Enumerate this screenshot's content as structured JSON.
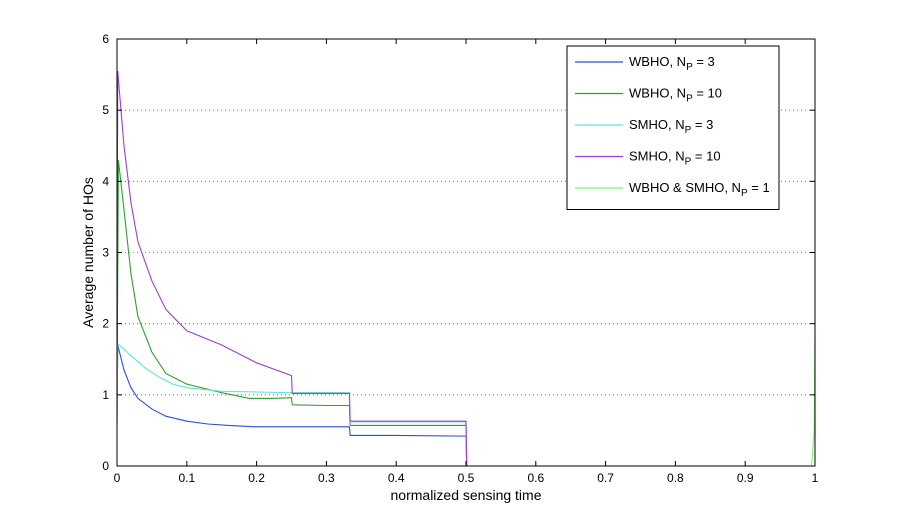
{
  "chart_data": {
    "type": "line",
    "title": "",
    "xlabel": "normalized sensing time",
    "ylabel": "Average number of HOs",
    "xlim": [
      0,
      1
    ],
    "ylim": [
      0,
      6
    ],
    "x_ticks": [
      "0",
      "0.1",
      "0.2",
      "0.3",
      "0.4",
      "0.5",
      "0.6",
      "0.7",
      "0.8",
      "0.9",
      "1"
    ],
    "y_ticks": [
      "0",
      "1",
      "2",
      "3",
      "4",
      "5",
      "6"
    ],
    "grid": "dotted-horizontal",
    "legend_position": "top-right",
    "series": [
      {
        "name": "WBHO, N_P = 3",
        "legend": {
          "main": "WBHO, N",
          "sub": "P",
          "suffix": " = 3"
        },
        "color": "#2b4fd6",
        "points": [
          [
            0,
            0.6
          ],
          [
            0.001,
            1.7
          ],
          [
            0.01,
            1.35
          ],
          [
            0.02,
            1.1
          ],
          [
            0.03,
            0.95
          ],
          [
            0.05,
            0.8
          ],
          [
            0.07,
            0.7
          ],
          [
            0.1,
            0.63
          ],
          [
            0.13,
            0.59
          ],
          [
            0.16,
            0.57
          ],
          [
            0.2,
            0.55
          ],
          [
            0.25,
            0.55
          ],
          [
            0.333,
            0.55
          ],
          [
            0.334,
            0.43
          ],
          [
            0.4,
            0.43
          ],
          [
            0.5,
            0.42
          ],
          [
            0.501,
            0.0
          ],
          [
            0.999,
            0.0
          ],
          [
            1.0,
            0.0
          ]
        ]
      },
      {
        "name": "WBHO, N_P = 10",
        "legend": {
          "main": "WBHO, N",
          "sub": "P",
          "suffix": " = 10"
        },
        "color": "#2ea02e",
        "points": [
          [
            0,
            1.0
          ],
          [
            0.002,
            4.3
          ],
          [
            0.01,
            3.6
          ],
          [
            0.02,
            2.7
          ],
          [
            0.03,
            2.1
          ],
          [
            0.05,
            1.6
          ],
          [
            0.07,
            1.3
          ],
          [
            0.1,
            1.15
          ],
          [
            0.15,
            1.03
          ],
          [
            0.19,
            0.95
          ],
          [
            0.22,
            0.95
          ],
          [
            0.25,
            0.96
          ],
          [
            0.251,
            0.86
          ],
          [
            0.3,
            0.85
          ],
          [
            0.333,
            0.85
          ],
          [
            0.334,
            0.57
          ],
          [
            0.4,
            0.57
          ],
          [
            0.5,
            0.57
          ],
          [
            0.501,
            0.0
          ],
          [
            0.999,
            0.0
          ],
          [
            1.0,
            0.0
          ]
        ]
      },
      {
        "name": "SMHO, N_P = 3",
        "legend": {
          "main": "SMHO, N",
          "sub": "P",
          "suffix": " = 3"
        },
        "color": "#5ee6d2",
        "points": [
          [
            0,
            0.6
          ],
          [
            0.001,
            1.72
          ],
          [
            0.02,
            1.55
          ],
          [
            0.04,
            1.38
          ],
          [
            0.06,
            1.25
          ],
          [
            0.08,
            1.15
          ],
          [
            0.1,
            1.1
          ],
          [
            0.15,
            1.05
          ],
          [
            0.2,
            1.04
          ],
          [
            0.25,
            1.03
          ],
          [
            0.333,
            1.03
          ],
          [
            0.334,
            0.62
          ],
          [
            0.4,
            0.62
          ],
          [
            0.5,
            0.62
          ],
          [
            0.501,
            0.0
          ],
          [
            0.999,
            0.0
          ],
          [
            1.0,
            0.0
          ]
        ]
      },
      {
        "name": "SMHO, N_P = 10",
        "legend": {
          "main": "SMHO, N",
          "sub": "P",
          "suffix": " = 10"
        },
        "color": "#9b3fcf",
        "points": [
          [
            0,
            1.3
          ],
          [
            0.001,
            5.55
          ],
          [
            0.01,
            4.5
          ],
          [
            0.02,
            3.7
          ],
          [
            0.03,
            3.15
          ],
          [
            0.05,
            2.6
          ],
          [
            0.07,
            2.2
          ],
          [
            0.1,
            1.9
          ],
          [
            0.15,
            1.7
          ],
          [
            0.2,
            1.45
          ],
          [
            0.25,
            1.27
          ],
          [
            0.251,
            1.02
          ],
          [
            0.3,
            1.02
          ],
          [
            0.333,
            1.02
          ],
          [
            0.334,
            0.63
          ],
          [
            0.4,
            0.63
          ],
          [
            0.5,
            0.63
          ],
          [
            0.501,
            0.0
          ],
          [
            0.999,
            0.0
          ],
          [
            1.0,
            0.0
          ]
        ]
      },
      {
        "name": "WBHO & SMHO, N_P = 1",
        "legend": {
          "main": "WBHO & SMHO, N",
          "sub": "P",
          "suffix": " = 1"
        },
        "color": "#7ef27a",
        "points": [
          [
            0,
            0.0
          ],
          [
            0.5,
            0.0
          ],
          [
            0.995,
            0.0
          ],
          [
            0.999,
            0.5
          ],
          [
            1.0,
            2.0
          ]
        ]
      }
    ]
  }
}
